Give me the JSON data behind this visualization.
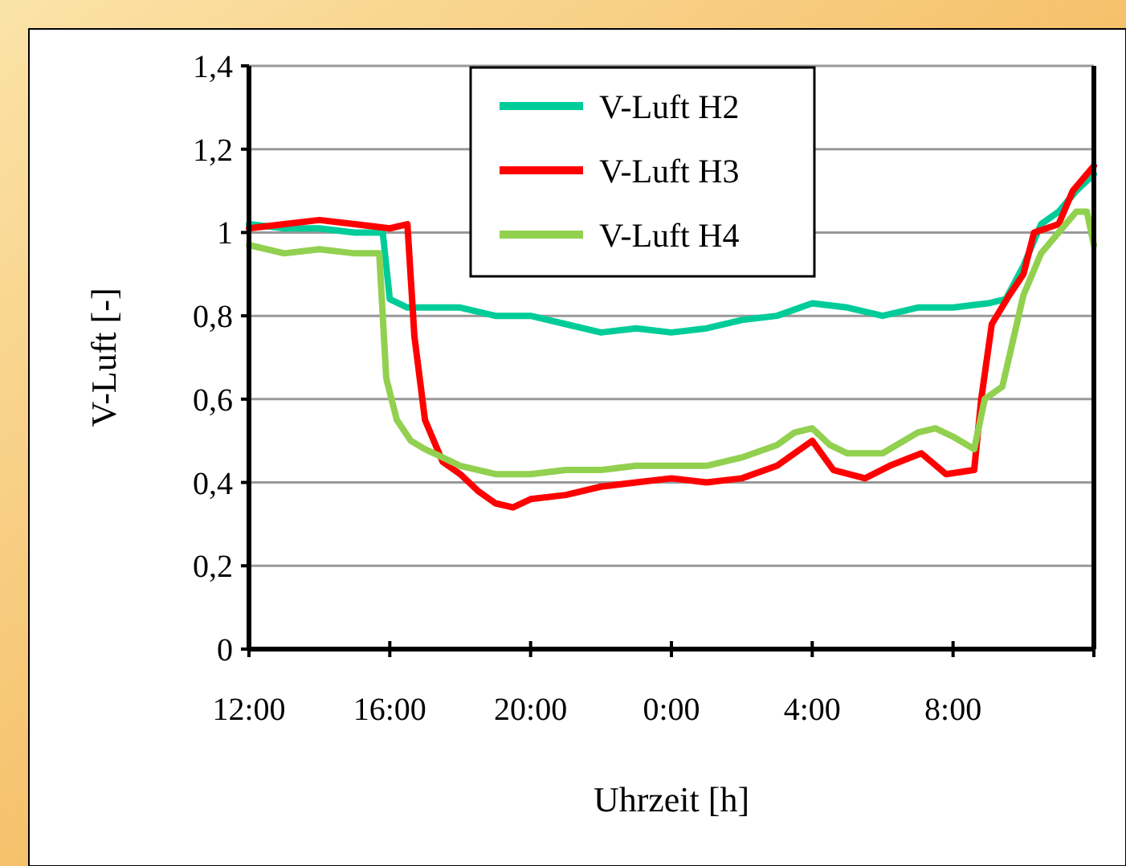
{
  "chart_data": {
    "type": "line",
    "xlabel": "Uhrzeit [h]",
    "ylabel": "V-Luft [-]",
    "xlim": [
      "2000-01-01T12:00",
      "2000-01-02T12:00"
    ],
    "xticks": [
      {
        "value": "2000-01-01T12:00",
        "label": "12:00"
      },
      {
        "value": "2000-01-01T16:00",
        "label": "16:00"
      },
      {
        "value": "2000-01-01T20:00",
        "label": "20:00"
      },
      {
        "value": "2000-01-02T00:00",
        "label": "0:00"
      },
      {
        "value": "2000-01-02T04:00",
        "label": "4:00"
      },
      {
        "value": "2000-01-02T08:00",
        "label": "8:00"
      },
      {
        "value": "2000-01-02T12:00",
        "label": null
      }
    ],
    "ylim": [
      0,
      1.4
    ],
    "yticks": [
      0,
      {
        "value": 0.2,
        "label": "0,2"
      },
      {
        "value": 0.4,
        "label": "0,4"
      },
      {
        "value": 0.6,
        "label": "0,6"
      },
      {
        "value": 0.8,
        "label": "0,8"
      },
      1,
      {
        "value": 1.2,
        "label": "1,2"
      },
      {
        "value": 1.4,
        "label": "1,4"
      }
    ],
    "grid": "y",
    "legend": "top",
    "marker": "none",
    "line_style": "solid",
    "series": [
      {
        "name": "V-Luft H2",
        "color": "#00cc99",
        "x": [
          "2000-01-01T12:00",
          "2000-01-01T13:00",
          "2000-01-01T14:00",
          "2000-01-01T15:00",
          "2000-01-01T15:48",
          "2000-01-01T16:00",
          "2000-01-01T16:30",
          "2000-01-01T17:00",
          "2000-01-01T18:00",
          "2000-01-01T19:00",
          "2000-01-01T20:00",
          "2000-01-01T21:00",
          "2000-01-01T22:00",
          "2000-01-01T23:00",
          "2000-01-02T00:00",
          "2000-01-02T01:00",
          "2000-01-02T02:00",
          "2000-01-02T03:00",
          "2000-01-02T04:00",
          "2000-01-02T05:00",
          "2000-01-02T06:00",
          "2000-01-02T07:00",
          "2000-01-02T08:00",
          "2000-01-02T09:00",
          "2000-01-02T09:30",
          "2000-01-02T10:00",
          "2000-01-02T10:30",
          "2000-01-02T11:00",
          "2000-01-02T11:30",
          "2000-01-02T12:00"
        ],
        "values": [
          1.02,
          1.01,
          1.01,
          1.0,
          1.0,
          0.84,
          0.82,
          0.82,
          0.82,
          0.8,
          0.8,
          0.78,
          0.76,
          0.77,
          0.76,
          0.77,
          0.79,
          0.8,
          0.83,
          0.82,
          0.8,
          0.82,
          0.82,
          0.83,
          0.84,
          0.92,
          1.02,
          1.05,
          1.1,
          1.14
        ]
      },
      {
        "name": "V-Luft H3",
        "color": "#ff0000",
        "x": [
          "2000-01-01T12:00",
          "2000-01-01T13:00",
          "2000-01-01T14:00",
          "2000-01-01T15:00",
          "2000-01-01T16:00",
          "2000-01-01T16:30",
          "2000-01-01T16:42",
          "2000-01-01T17:00",
          "2000-01-01T17:30",
          "2000-01-01T18:00",
          "2000-01-01T18:30",
          "2000-01-01T19:00",
          "2000-01-01T19:30",
          "2000-01-01T20:00",
          "2000-01-01T21:00",
          "2000-01-01T22:00",
          "2000-01-01T23:00",
          "2000-01-02T00:00",
          "2000-01-02T01:00",
          "2000-01-02T02:00",
          "2000-01-02T03:00",
          "2000-01-02T04:00",
          "2000-01-02T04:36",
          "2000-01-02T05:30",
          "2000-01-02T06:12",
          "2000-01-02T07:06",
          "2000-01-02T07:48",
          "2000-01-02T08:36",
          "2000-01-02T08:48",
          "2000-01-02T09:06",
          "2000-01-02T09:36",
          "2000-01-02T10:00",
          "2000-01-02T10:18",
          "2000-01-02T11:00",
          "2000-01-02T11:24",
          "2000-01-02T12:00"
        ],
        "values": [
          1.01,
          1.02,
          1.03,
          1.02,
          1.01,
          1.02,
          0.75,
          0.55,
          0.45,
          0.42,
          0.38,
          0.35,
          0.34,
          0.36,
          0.37,
          0.39,
          0.4,
          0.41,
          0.4,
          0.41,
          0.44,
          0.5,
          0.43,
          0.41,
          0.44,
          0.47,
          0.42,
          0.43,
          0.6,
          0.78,
          0.85,
          0.9,
          1.0,
          1.02,
          1.1,
          1.16
        ]
      },
      {
        "name": "V-Luft H4",
        "color": "#92d050",
        "x": [
          "2000-01-01T12:00",
          "2000-01-01T13:00",
          "2000-01-01T14:00",
          "2000-01-01T15:00",
          "2000-01-01T15:42",
          "2000-01-01T15:54",
          "2000-01-01T16:12",
          "2000-01-01T16:36",
          "2000-01-01T17:00",
          "2000-01-01T17:30",
          "2000-01-01T18:00",
          "2000-01-01T19:00",
          "2000-01-01T20:00",
          "2000-01-01T21:00",
          "2000-01-01T22:00",
          "2000-01-01T23:00",
          "2000-01-02T00:00",
          "2000-01-02T01:00",
          "2000-01-02T02:00",
          "2000-01-02T03:00",
          "2000-01-02T03:30",
          "2000-01-02T04:00",
          "2000-01-02T04:30",
          "2000-01-02T05:00",
          "2000-01-02T06:00",
          "2000-01-02T07:00",
          "2000-01-02T07:30",
          "2000-01-02T08:00",
          "2000-01-02T08:36",
          "2000-01-02T08:54",
          "2000-01-02T09:24",
          "2000-01-02T10:00",
          "2000-01-02T10:30",
          "2000-01-02T11:00",
          "2000-01-02T11:30",
          "2000-01-02T11:48",
          "2000-01-02T12:00"
        ],
        "values": [
          0.97,
          0.95,
          0.96,
          0.95,
          0.95,
          0.65,
          0.55,
          0.5,
          0.48,
          0.46,
          0.44,
          0.42,
          0.42,
          0.43,
          0.43,
          0.44,
          0.44,
          0.44,
          0.46,
          0.49,
          0.52,
          0.53,
          0.49,
          0.47,
          0.47,
          0.52,
          0.53,
          0.51,
          0.48,
          0.6,
          0.63,
          0.85,
          0.95,
          1.0,
          1.05,
          1.05,
          0.97
        ]
      }
    ]
  }
}
